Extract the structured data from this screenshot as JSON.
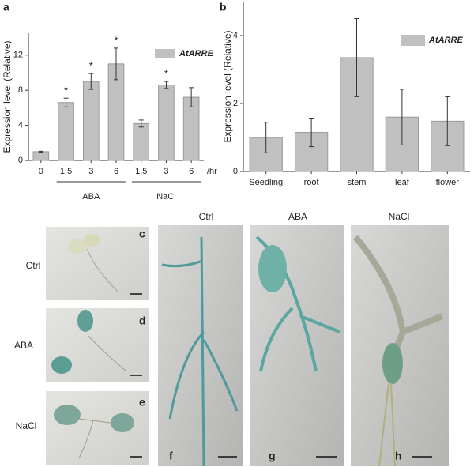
{
  "chart_data": [
    {
      "type": "bar",
      "panel": "a",
      "y_label": "Expression level (Relative)",
      "categories": [
        "0",
        "1.5",
        "3",
        "6",
        "1.5",
        "3",
        "6"
      ],
      "x_unit": "/hr",
      "group_of": [
        null,
        "ABA",
        "ABA",
        "ABA",
        "NaCl",
        "NaCl",
        "NaCl"
      ],
      "series": [
        {
          "name": "AtARRE",
          "color": "#c0c0c0",
          "values": [
            1.0,
            6.6,
            9.0,
            11.0,
            4.2,
            8.6,
            7.2
          ],
          "errors": [
            0.05,
            0.5,
            0.9,
            1.8,
            0.4,
            0.4,
            1.1
          ],
          "significance": [
            null,
            "*",
            "*",
            "*",
            null,
            "*",
            null
          ]
        }
      ],
      "ylim": [
        0,
        14.5
      ],
      "yticks": [
        0,
        4,
        8,
        12
      ]
    },
    {
      "type": "bar",
      "panel": "b",
      "y_label": "Expression level (Relative)",
      "categories": [
        "Seedling",
        "root",
        "stem",
        "leaf",
        "flower"
      ],
      "series": [
        {
          "name": "AtARRE",
          "color": "#c0c0c0",
          "values": [
            1.0,
            1.15,
            3.35,
            1.6,
            1.48
          ],
          "errors": [
            0.45,
            0.42,
            1.15,
            0.82,
            0.72
          ]
        }
      ],
      "ylim": [
        0,
        5
      ],
      "yticks": [
        0,
        2,
        4
      ]
    }
  ],
  "photo_panels": {
    "row_labels": [
      "Ctrl",
      "ABA",
      "NaCl"
    ],
    "small_panels": [
      "c",
      "d",
      "e"
    ],
    "column_labels": [
      "Ctrl",
      "ABA",
      "NaCl"
    ],
    "large_panels": [
      "f",
      "g",
      "h"
    ]
  }
}
